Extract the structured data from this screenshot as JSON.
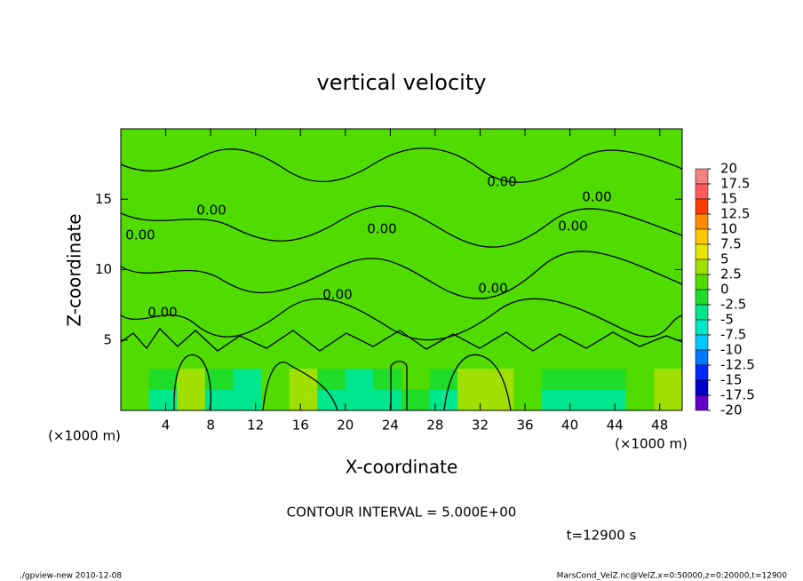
{
  "chart_data": {
    "type": "contour",
    "title": "vertical velocity",
    "xlabel": "X-coordinate",
    "ylabel": "Z-coordinate",
    "x_unit": "(×1000 m)",
    "y_unit": "(×1000 m)",
    "xlim": [
      0,
      50
    ],
    "ylim": [
      0,
      20
    ],
    "xticks": [
      4,
      8,
      12,
      16,
      20,
      24,
      28,
      32,
      36,
      40,
      44,
      48
    ],
    "yticks": [
      5,
      10,
      15
    ],
    "contour_label": "0.00",
    "annotation": "CONTOUR INTERVAL = 5.000E+00",
    "time_label": "t=12900 s",
    "footer_left": "./gpview-new  2010-12-08",
    "footer_right": "MarsCond_VelZ.nc@VelZ,x=0:50000,z=0:20000,t=12900",
    "levels": [
      20,
      17.5,
      15,
      12.5,
      10,
      7.5,
      5,
      2.5,
      0,
      -2.5,
      -5,
      -7.5,
      -10,
      -12.5,
      -15,
      -17.5,
      -20
    ],
    "colors": [
      "#f48080",
      "#ff5a5a",
      "#ff3c00",
      "#ff8c00",
      "#ffc800",
      "#e6e600",
      "#a0e000",
      "#50dc00",
      "#1edc28",
      "#00e68c",
      "#00e6c8",
      "#00c8ff",
      "#0078ff",
      "#0028ff",
      "#0000c8",
      "#6400c8"
    ],
    "field": {
      "x": [
        0,
        2.5,
        5,
        7.5,
        10,
        12.5,
        15,
        17.5,
        20,
        22.5,
        25,
        27.5,
        30,
        32.5,
        35,
        37.5,
        40,
        42.5,
        45,
        47.5,
        50
      ],
      "z": [
        0,
        1.5,
        3,
        4.5,
        20
      ],
      "values": [
        [
          2,
          -3,
          4,
          -4,
          -5,
          2,
          3,
          -4,
          -4,
          -3,
          -1,
          -3,
          4,
          3,
          1,
          -3,
          -3,
          -3,
          1,
          3
        ],
        [
          2,
          -1,
          4,
          -2,
          -3,
          2,
          3,
          -2,
          -3,
          -2,
          0,
          -2,
          4,
          3,
          2,
          -1,
          -2,
          -2,
          1,
          3
        ],
        [
          1,
          1,
          2,
          1,
          1,
          2,
          2,
          1,
          1,
          1,
          1,
          1,
          2,
          2,
          1,
          1,
          1,
          1,
          1,
          2
        ],
        [
          1,
          1,
          1,
          1,
          1,
          1,
          1,
          1,
          1,
          1,
          1,
          1,
          1,
          1,
          1,
          1,
          1,
          1,
          1,
          1
        ]
      ]
    }
  }
}
